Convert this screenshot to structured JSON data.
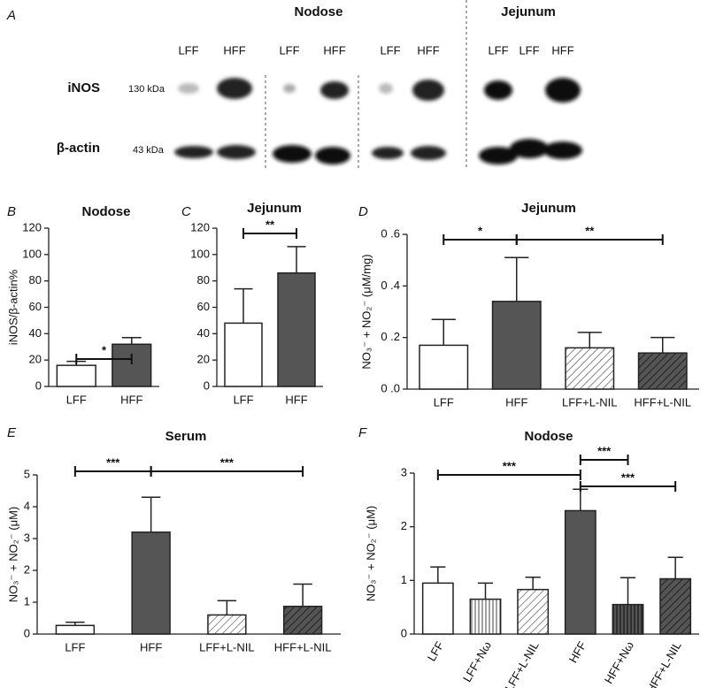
{
  "blot": {
    "panel": "A",
    "groups": [
      "Nodose",
      "Jejunum"
    ],
    "lanes": [
      "LFF",
      "HFF",
      "LFF",
      "HFF",
      "LFF",
      "HFF",
      "LFF",
      "LFF",
      "HFF"
    ],
    "rows": [
      {
        "label": "iNOS",
        "size": "130 kDa"
      },
      {
        "label": "β-actin",
        "size": "43 kDa"
      }
    ]
  },
  "chart_data": [
    {
      "type": "bar",
      "panel": "B",
      "title": "Nodose",
      "y_label": "iNOS/β-actin%",
      "categories": [
        "LFF",
        "HFF"
      ],
      "values": [
        16,
        32
      ],
      "errors": [
        3,
        5
      ],
      "bar_styles": [
        "open",
        "solid"
      ],
      "ylim": [
        0,
        120
      ],
      "yticks": [
        0,
        20,
        40,
        60,
        80,
        100,
        120
      ],
      "annotations": [
        {
          "label": "*",
          "between": [
            "LFF",
            "HFF"
          ]
        }
      ]
    },
    {
      "type": "bar",
      "panel": "C",
      "title": "Jejunum",
      "categories": [
        "LFF",
        "HFF"
      ],
      "values": [
        48,
        86
      ],
      "errors": [
        26,
        20
      ],
      "bar_styles": [
        "open",
        "solid"
      ],
      "ylim": [
        0,
        120
      ],
      "yticks": [
        0,
        20,
        40,
        60,
        80,
        100,
        120
      ],
      "annotations": [
        {
          "label": "**",
          "between": [
            "LFF",
            "HFF"
          ]
        }
      ]
    },
    {
      "type": "bar",
      "panel": "D",
      "title": "Jejunum",
      "y_label": "NO₃⁻ + NO₂⁻ (μM/mg)",
      "categories": [
        "LFF",
        "HFF",
        "LFF+L-NIL",
        "HFF+L-NIL"
      ],
      "values": [
        0.17,
        0.34,
        0.16,
        0.14
      ],
      "errors": [
        0.1,
        0.17,
        0.06,
        0.06
      ],
      "bar_styles": [
        "open",
        "solid",
        "hatch",
        "hatch-dark"
      ],
      "ylim": [
        0,
        0.6
      ],
      "yticks": [
        {
          "value": 0,
          "label": "0 .0"
        },
        {
          "value": 0.2,
          "label": "0 .2"
        },
        {
          "value": 0.4,
          "label": "0 .4"
        },
        {
          "value": 0.6,
          "label": "0 .6"
        }
      ],
      "annotations": [
        {
          "label": "*",
          "between": [
            "LFF",
            "HFF"
          ]
        },
        {
          "label": "**",
          "between": [
            "HFF",
            "HFF+L-NIL"
          ]
        }
      ]
    },
    {
      "type": "bar",
      "panel": "E",
      "title": "Serum",
      "y_label": "NO₃⁻ + NO₂⁻ (μM)",
      "categories": [
        "LFF",
        "HFF",
        "LFF+L-NIL",
        "HFF+L-NIL"
      ],
      "values": [
        0.27,
        3.2,
        0.6,
        0.87
      ],
      "errors": [
        0.1,
        1.1,
        0.45,
        0.7
      ],
      "bar_styles": [
        "open",
        "solid",
        "hatch",
        "hatch-dark"
      ],
      "ylim": [
        0,
        5
      ],
      "yticks": [
        0,
        1,
        2,
        3,
        4,
        5
      ],
      "annotations": [
        {
          "label": "***",
          "between": [
            "LFF",
            "HFF"
          ]
        },
        {
          "label": "***",
          "between": [
            "HFF",
            "HFF+L-NIL"
          ]
        }
      ]
    },
    {
      "type": "bar",
      "panel": "F",
      "title": "Nodose",
      "y_label": "NO₃⁻ + NO₂⁻ (μM)",
      "categories": [
        "LFF",
        "LFF+Nω",
        "LFF+L-NIL",
        "HFF",
        "HFF+Nω",
        "HFF+L-NIL"
      ],
      "values": [
        0.95,
        0.65,
        0.83,
        2.3,
        0.55,
        1.03
      ],
      "errors": [
        0.3,
        0.3,
        0.23,
        0.4,
        0.5,
        0.4
      ],
      "bar_styles": [
        "open",
        "vertical",
        "hatch",
        "solid",
        "vertical-dark",
        "hatch-dark"
      ],
      "ylim": [
        0,
        3
      ],
      "yticks": [
        0,
        1,
        2,
        3
      ],
      "annotations": [
        {
          "label": "***",
          "between": [
            "LFF",
            "HFF"
          ]
        },
        {
          "label": "***",
          "between": [
            "HFF",
            "HFF+Nω"
          ]
        },
        {
          "label": "***",
          "between": [
            "HFF",
            "HFF+L-NIL"
          ]
        }
      ]
    }
  ]
}
